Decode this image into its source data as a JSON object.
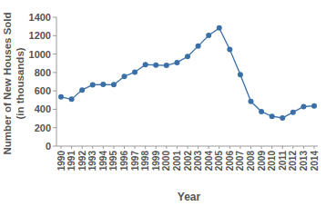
{
  "chart_data": {
    "type": "line",
    "x_label": "Year",
    "y_label": [
      "Number of New Houses Sold",
      "(in thousands)"
    ],
    "x": [
      1990,
      1991,
      1992,
      1993,
      1994,
      1995,
      1996,
      1997,
      1998,
      1999,
      2000,
      2001,
      2002,
      2003,
      2004,
      2005,
      2006,
      2007,
      2008,
      2009,
      2010,
      2011,
      2012,
      2013,
      2014
    ],
    "values": [
      534,
      509,
      610,
      666,
      670,
      667,
      757,
      804,
      886,
      880,
      877,
      908,
      973,
      1086,
      1203,
      1283,
      1051,
      776,
      485,
      375,
      323,
      306,
      368,
      429,
      437
    ],
    "color": "#3a6fa8",
    "marker": "circle",
    "line_style": "solid",
    "xlim": [
      1990,
      2014
    ],
    "xticks": [
      1990,
      1991,
      1992,
      1993,
      1994,
      1995,
      1996,
      1997,
      1998,
      1999,
      2000,
      2001,
      2002,
      2003,
      2004,
      2005,
      2006,
      2007,
      2008,
      2009,
      2010,
      2011,
      2012,
      2013,
      2014
    ],
    "ylim": [
      0,
      1400
    ],
    "yticks": [
      0,
      200,
      400,
      600,
      800,
      1000,
      1200,
      1400
    ],
    "grid": false
  }
}
